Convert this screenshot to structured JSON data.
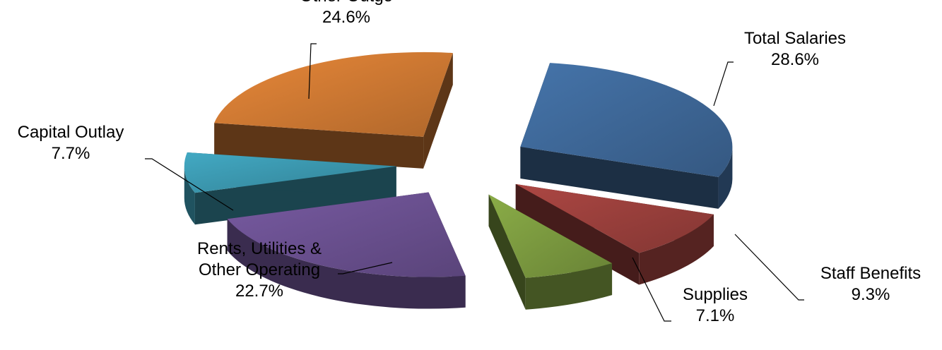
{
  "chart_data": {
    "type": "pie",
    "style": "3d-exploded",
    "legend": "none",
    "slices": [
      {
        "label_lines": [
          "Total Salaries"
        ],
        "value_label": "28.6%",
        "value": 28.6,
        "color": "#3e6898"
      },
      {
        "label_lines": [
          "Staff Benefits"
        ],
        "value_label": "9.3%",
        "value": 9.3,
        "color": "#9a3f3c"
      },
      {
        "label_lines": [
          "Supplies"
        ],
        "value_label": "7.1%",
        "value": 7.1,
        "color": "#7b9a3f"
      },
      {
        "label_lines": [
          "Rents, Utilities &",
          "Other Operating"
        ],
        "value_label": "22.7%",
        "value": 22.7,
        "color": "#6a5090"
      },
      {
        "label_lines": [
          "Capital Outlay"
        ],
        "value_label": "7.7%",
        "value": 7.7,
        "color": "#3b97ae"
      },
      {
        "label_lines": [
          "Other Outgo"
        ],
        "value_label": "24.6%",
        "value": 24.6,
        "color": "#cf7933"
      }
    ]
  }
}
